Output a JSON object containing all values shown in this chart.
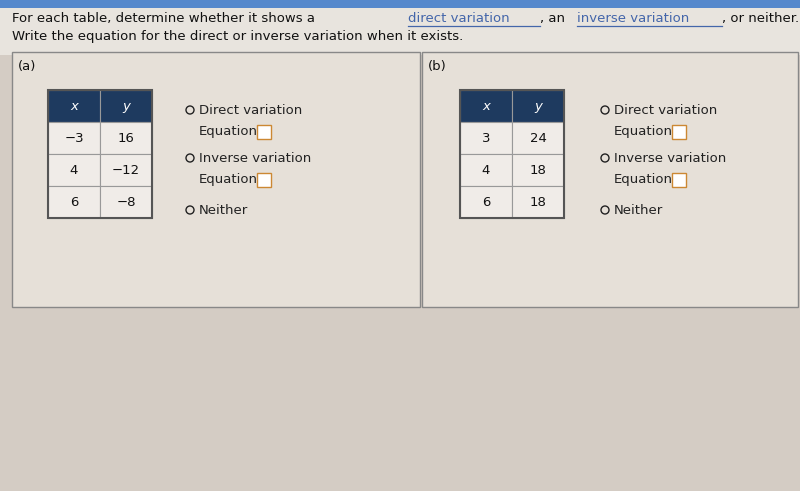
{
  "parts_line1": [
    [
      "For each table, determine whether it shows a ",
      false
    ],
    [
      "direct variation",
      true
    ],
    [
      ", an ",
      false
    ],
    [
      "inverse variation",
      true
    ],
    [
      ", or neither.",
      false
    ]
  ],
  "subtitle": "Write the equation for the direct or inverse variation when it exists.",
  "section_a_label": "(a)",
  "section_b_label": "(b)",
  "table_a_header": [
    "x",
    "y"
  ],
  "table_a_rows": [
    [
      "−3",
      "16"
    ],
    [
      "4",
      "−12"
    ],
    [
      "6",
      "−8"
    ]
  ],
  "table_b_header": [
    "x",
    "y"
  ],
  "table_b_rows": [
    [
      "3",
      "24"
    ],
    [
      "4",
      "18"
    ],
    [
      "6",
      "18"
    ]
  ],
  "options": [
    "Direct variation",
    "Inverse variation",
    "Neither"
  ],
  "equation_label": "Equation:",
  "header_color": "#1e3a5f",
  "header_text_color": "#ffffff",
  "cell_bg_color": "#f0ece8",
  "cell_border_color": "#999999",
  "section_border_color": "#aaaaaa",
  "bg_color": "#d4ccc4",
  "top_bg_color": "#e8e4de",
  "body_text_color": "#111111",
  "link_text_color": "#4466aa",
  "option_text_color": "#222222",
  "font_size_title": 9.5,
  "font_size_label": 9.5,
  "font_size_cell": 9.5
}
